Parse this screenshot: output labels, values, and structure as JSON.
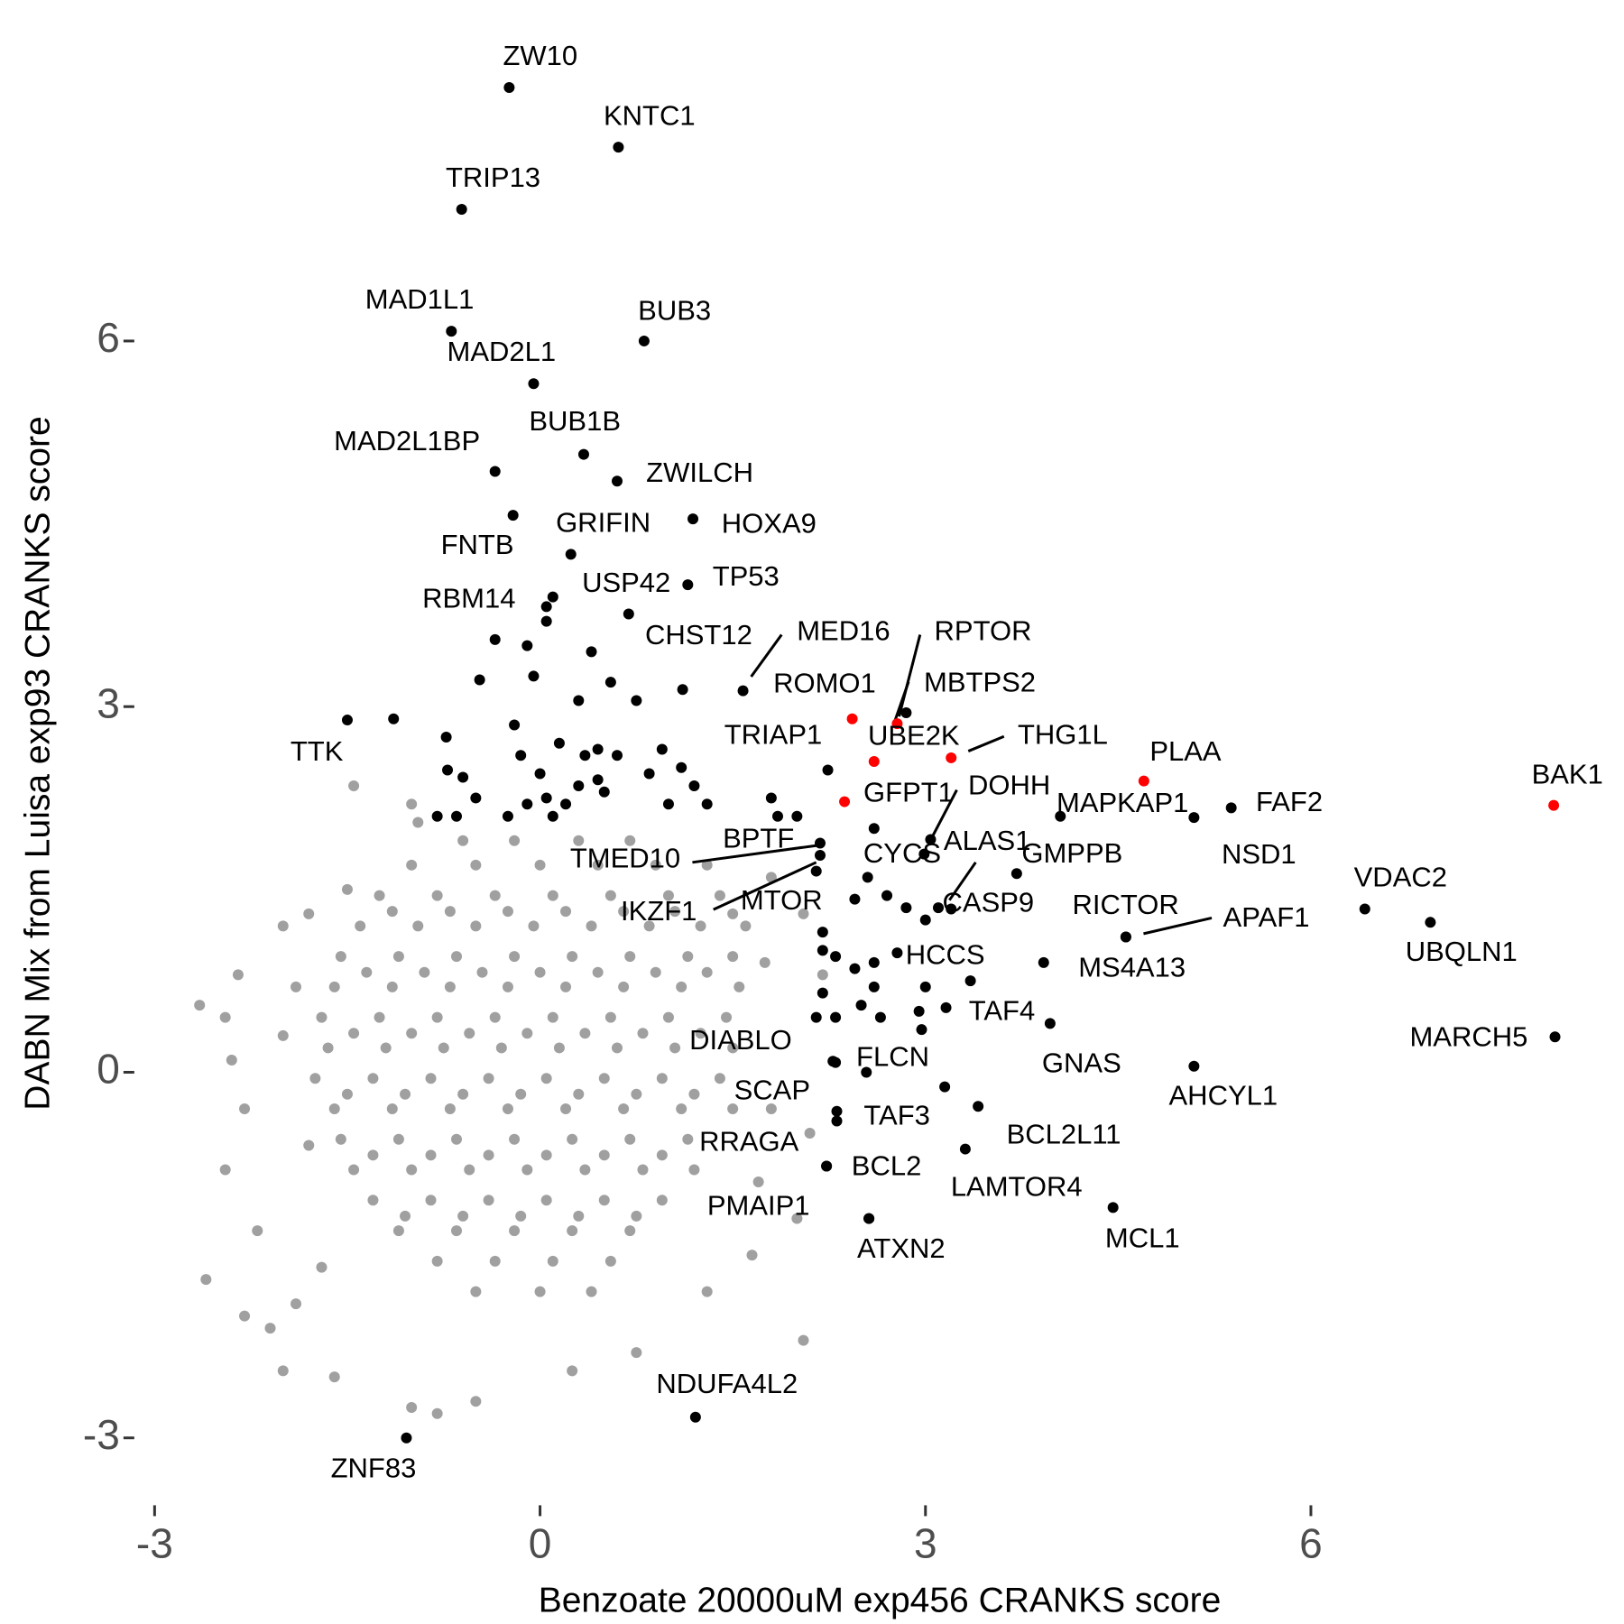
{
  "chart_data": {
    "type": "scatter",
    "xlabel": "Benzoate 20000uM exp456 CRANKS score",
    "ylabel": "DABN Mix from Luisa exp93 CRANKS score",
    "xlim": [
      -3.15,
      8.1
    ],
    "ylim": [
      -3.35,
      8.25
    ],
    "xticks": [
      -3,
      0,
      3,
      6
    ],
    "yticks": [
      -3,
      0,
      3,
      6
    ],
    "grid": false,
    "series": [
      {
        "color": "#a0a0a0",
        "x": [
          -2.65,
          -2.45,
          -2.4,
          -2.3,
          -2.45,
          -2.6,
          -2.3,
          -2.1,
          -2.0,
          -1.6,
          -1.0,
          -0.8,
          -0.5,
          -1.5,
          -1.45,
          -1.0,
          -0.95,
          -2.0,
          -1.8,
          2.05,
          1.3,
          0.75,
          0.25,
          1.65,
          2.0,
          2.1,
          2.2,
          2.05,
          1.8,
          -2.35,
          -2.2,
          -1.9,
          -1.7,
          -1.8,
          -2.0,
          -1.9,
          1.75,
          1.8,
          1.7,
          1.5,
          -0.6,
          -0.2,
          0.3,
          0.7,
          -1.0,
          -0.5,
          0.0,
          0.45,
          0.9,
          1.3,
          -1.25,
          -0.8,
          -0.35,
          0.1,
          0.55,
          1.0,
          1.4,
          -1.4,
          -0.95,
          -0.5,
          -0.05,
          0.4,
          0.85,
          1.25,
          1.6,
          -1.55,
          -1.1,
          -0.65,
          -0.2,
          0.25,
          0.7,
          1.15,
          1.5,
          -1.6,
          -1.15,
          -0.7,
          -0.25,
          0.2,
          0.65,
          1.1,
          1.55,
          -1.7,
          -1.25,
          -0.8,
          -0.35,
          0.1,
          0.55,
          1.0,
          1.45,
          -1.65,
          -1.2,
          -0.75,
          -0.3,
          0.15,
          0.6,
          1.05,
          1.5,
          -1.75,
          -1.3,
          -0.85,
          -0.4,
          0.05,
          0.5,
          0.95,
          1.4,
          -1.6,
          -1.15,
          -0.7,
          -0.25,
          0.2,
          0.65,
          1.1,
          1.5,
          -1.55,
          -1.1,
          -0.65,
          -0.2,
          0.25,
          0.7,
          1.15,
          -1.45,
          -1.0,
          -0.55,
          -0.1,
          0.35,
          0.8,
          1.2,
          -1.3,
          -0.85,
          -0.4,
          0.05,
          0.5,
          0.95,
          -1.1,
          -0.65,
          -0.2,
          0.25,
          0.7,
          -0.8,
          -0.35,
          0.1,
          0.55,
          -0.5,
          0.0,
          0.4,
          -1.15,
          -0.7,
          -0.25,
          0.2,
          0.65,
          1.05,
          -1.35,
          -0.9,
          -0.45,
          0.0,
          0.45,
          0.9,
          1.3,
          -1.45,
          -1.0,
          -0.55,
          -0.1,
          0.35,
          0.8,
          1.25,
          -1.5,
          -1.05,
          -0.6,
          -0.15,
          0.3,
          0.75,
          1.2,
          -1.3,
          -0.85,
          -0.4,
          0.05,
          0.5,
          0.95,
          -1.05,
          -0.6,
          -0.15,
          0.3,
          0.75
        ],
        "values": [
          0.55,
          0.45,
          0.1,
          -0.3,
          -0.8,
          -1.7,
          -2.0,
          -2.1,
          -2.45,
          -2.5,
          -2.75,
          -2.8,
          -2.7,
          1.5,
          2.35,
          2.2,
          2.05,
          1.2,
          1.3,
          -2.2,
          -1.8,
          -2.3,
          -2.45,
          -1.5,
          -1.2,
          -0.5,
          0.8,
          1.3,
          1.6,
          0.8,
          -1.3,
          -1.9,
          -1.6,
          -0.6,
          0.3,
          0.7,
          0.9,
          -0.3,
          -0.9,
          1.3,
          1.9,
          1.9,
          1.9,
          1.9,
          1.7,
          1.7,
          1.7,
          1.7,
          1.7,
          1.7,
          1.45,
          1.45,
          1.45,
          1.45,
          1.45,
          1.45,
          1.45,
          1.2,
          1.2,
          1.2,
          1.2,
          1.2,
          1.2,
          1.2,
          1.2,
          0.95,
          0.95,
          0.95,
          0.95,
          0.95,
          0.95,
          0.95,
          0.95,
          0.7,
          0.7,
          0.7,
          0.7,
          0.7,
          0.7,
          0.7,
          0.7,
          0.45,
          0.45,
          0.45,
          0.45,
          0.45,
          0.45,
          0.45,
          0.45,
          0.2,
          0.2,
          0.2,
          0.2,
          0.2,
          0.2,
          0.2,
          0.2,
          -0.05,
          -0.05,
          -0.05,
          -0.05,
          -0.05,
          -0.05,
          -0.05,
          -0.05,
          -0.3,
          -0.3,
          -0.3,
          -0.3,
          -0.3,
          -0.3,
          -0.3,
          -0.3,
          -0.55,
          -0.55,
          -0.55,
          -0.55,
          -0.55,
          -0.55,
          -0.55,
          -0.8,
          -0.8,
          -0.8,
          -0.8,
          -0.8,
          -0.8,
          -0.8,
          -1.05,
          -1.05,
          -1.05,
          -1.05,
          -1.05,
          -1.05,
          -1.3,
          -1.3,
          -1.3,
          -1.3,
          -1.3,
          -1.55,
          -1.55,
          -1.55,
          -1.55,
          -1.8,
          -1.8,
          -1.8,
          1.32,
          1.32,
          1.32,
          1.32,
          1.32,
          1.32,
          0.82,
          0.82,
          0.82,
          0.82,
          0.82,
          0.82,
          0.82,
          0.32,
          0.32,
          0.32,
          0.32,
          0.32,
          0.32,
          0.32,
          -0.18,
          -0.18,
          -0.18,
          -0.18,
          -0.18,
          -0.18,
          -0.18,
          -0.68,
          -0.68,
          -0.68,
          -0.68,
          -0.68,
          -0.68,
          -1.18,
          -1.18,
          -1.18,
          -1.18,
          -1.18
        ]
      },
      {
        "color": "#000000",
        "x": [
          -1.14,
          -0.73,
          -0.47,
          -0.35,
          -0.72,
          -0.6,
          -0.5,
          -0.2,
          -0.15,
          -0.1,
          -0.05,
          0.05,
          0.1,
          0.0,
          -0.1,
          0.15,
          0.3,
          0.4,
          0.45,
          0.45,
          0.55,
          0.6,
          0.75,
          0.85,
          0.95,
          1.0,
          1.1,
          1.2,
          1.3,
          0.2,
          0.3,
          -0.8,
          -0.65,
          -0.25,
          0.1,
          0.5,
          0.35,
          0.05,
          1.8,
          1.85,
          2.0,
          2.2,
          2.3,
          2.45,
          2.6,
          2.6,
          2.2,
          2.15,
          2.3,
          2.5,
          2.65,
          2.95,
          2.97,
          3.0,
          3.35,
          2.85,
          3.0,
          2.55,
          2.6,
          2.7,
          2.3,
          3.15,
          2.2
        ],
        "values": [
          2.9,
          2.75,
          3.22,
          3.55,
          2.48,
          2.42,
          2.25,
          2.85,
          2.6,
          3.5,
          3.25,
          3.7,
          3.9,
          2.45,
          2.2,
          2.7,
          3.05,
          3.45,
          2.65,
          2.4,
          3.2,
          2.6,
          3.05,
          2.45,
          2.65,
          2.2,
          2.5,
          2.35,
          2.2,
          2.2,
          2.35,
          2.1,
          2.1,
          2.1,
          2.1,
          2.3,
          2.6,
          2.25,
          2.25,
          2.1,
          2.1,
          1.15,
          0.95,
          0.85,
          0.9,
          0.7,
          0.65,
          0.45,
          0.45,
          0.55,
          0.45,
          0.5,
          0.35,
          0.7,
          0.75,
          1.35,
          1.25,
          1.6,
          2.0,
          1.45,
          0.08,
          -0.12,
          1.0
        ]
      },
      {
        "color": "#000000",
        "labels": [
          "ZW10",
          "KNTC1",
          "TRIP13",
          "MAD1L1",
          "BUB3",
          "MAD2L1",
          "BUB1B",
          "MAD2L1BP",
          "ZWILCH",
          "FNTB",
          "HOXA9",
          "GRIFIN",
          "TP53",
          "USP42",
          "RBM14",
          "CHST12",
          "MED16",
          "ROMO1",
          "MBTPS2",
          "TTK",
          "MAPKAP1",
          "NSD1",
          "FAF2",
          "DOHH",
          "BPTF",
          "TMED10",
          "MTOR",
          "IKZF1",
          "CYCS",
          "ALAS1",
          "CASP9",
          "GMPPB",
          "RICTOR",
          "APAF1",
          "VDAC2",
          "UBQLN1",
          "MS4A13",
          "HCCS",
          "TAF4",
          "GNAS",
          "MARCH5",
          "AHCYL1",
          "DIABLO",
          "FLCN",
          "SCAP",
          "TAF3",
          "BCL2L11",
          "RRAGA",
          "BCL2",
          "LAMTOR4",
          "PMAIP1",
          "ATXN2",
          "MCL1",
          "NDUFA4L2",
          "ZNF83"
        ],
        "x": [
          -0.24,
          0.61,
          -0.61,
          -0.69,
          0.81,
          -0.05,
          0.34,
          -0.35,
          0.6,
          -0.21,
          1.19,
          0.24,
          1.15,
          0.69,
          0.05,
          1.11,
          1.58,
          2.24,
          2.85,
          -1.5,
          4.05,
          5.09,
          5.38,
          3.04,
          2.18,
          2.18,
          2.45,
          2.15,
          2.99,
          3.1,
          3.2,
          3.71,
          4.56,
          4.56,
          6.42,
          6.93,
          3.92,
          2.78,
          3.16,
          3.97,
          7.9,
          5.09,
          2.28,
          2.54,
          2.31,
          2.31,
          3.41,
          2.23,
          2.23,
          3.31,
          2.56,
          2.56,
          4.46,
          1.21,
          -1.04
        ],
        "values": [
          8.08,
          7.59,
          7.08,
          6.08,
          6.0,
          5.65,
          5.07,
          4.93,
          4.85,
          4.57,
          4.54,
          4.25,
          4.0,
          3.76,
          3.82,
          3.14,
          3.13,
          2.48,
          2.95,
          2.89,
          2.1,
          2.09,
          2.17,
          1.91,
          1.88,
          1.78,
          1.42,
          1.65,
          1.79,
          1.35,
          1.34,
          1.63,
          1.11,
          1.11,
          1.34,
          1.23,
          0.9,
          0.98,
          0.53,
          0.4,
          0.29,
          0.05,
          0.09,
          0.0,
          -0.32,
          -0.4,
          -0.28,
          -0.77,
          -0.77,
          -0.63,
          -1.2,
          -1.2,
          -1.11,
          -2.83,
          -3.0
        ]
      },
      {
        "color": "#ff0000",
        "labels": [
          "TRIAP1",
          "RPTOR",
          "UBE2K",
          "THG1L",
          "GFPT1",
          "PLAA",
          "BAK1"
        ],
        "x": [
          2.43,
          2.78,
          2.6,
          3.2,
          2.37,
          4.7,
          7.89
        ],
        "values": [
          2.9,
          2.86,
          2.55,
          2.58,
          2.22,
          2.39,
          2.19
        ]
      }
    ]
  }
}
